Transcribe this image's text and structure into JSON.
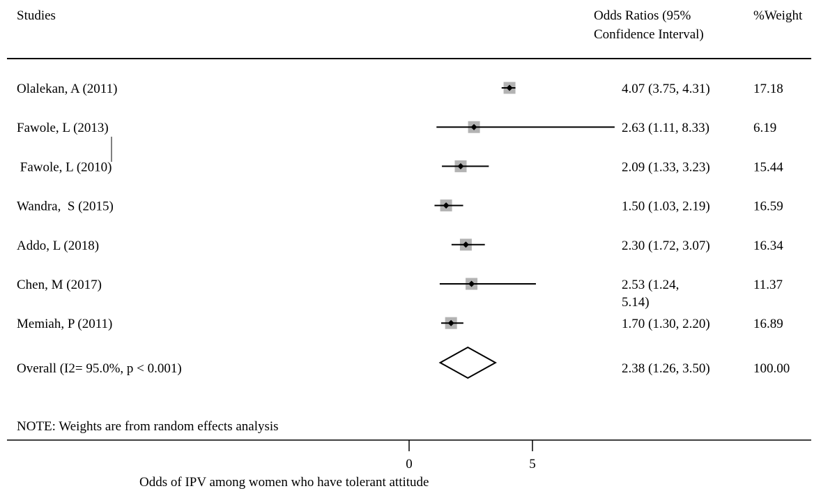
{
  "chart_data": {
    "type": "forest",
    "headers": {
      "studies": "Studies",
      "ci_line1": "Odds Ratios (95%",
      "ci_line2": "Confidence Interval)",
      "weight": "%Weight"
    },
    "studies": [
      {
        "label": "Olalekan, A (2011)",
        "or": 4.07,
        "lo": 3.75,
        "hi": 4.31,
        "ci_text": "4.07 (3.75, 4.31)",
        "weight": 17.18,
        "weight_text": "17.18"
      },
      {
        "label": "Fawole, L (2013)",
        "or": 2.63,
        "lo": 1.11,
        "hi": 8.33,
        "ci_text": "2.63 (1.11, 8.33)",
        "weight": 6.19,
        "weight_text": "6.19"
      },
      {
        "label": " Fawole, L (2010)",
        "or": 2.09,
        "lo": 1.33,
        "hi": 3.23,
        "ci_text": "2.09 (1.33, 3.23)",
        "weight": 15.44,
        "weight_text": "15.44"
      },
      {
        "label": "Wandra,  S (2015)",
        "or": 1.5,
        "lo": 1.03,
        "hi": 2.19,
        "ci_text": "1.50 (1.03, 2.19)",
        "weight": 16.59,
        "weight_text": "16.59"
      },
      {
        "label": "Addo, L (2018)",
        "or": 2.3,
        "lo": 1.72,
        "hi": 3.07,
        "ci_text": "2.30 (1.72, 3.07)",
        "weight": 16.34,
        "weight_text": "16.34"
      },
      {
        "label": "Chen, M (2017)",
        "or": 2.53,
        "lo": 1.24,
        "hi": 5.14,
        "ci_text": "2.53 (1.24,",
        "ci_text_wrap": "5.14)",
        "weight": 11.37,
        "weight_text": "11.37"
      },
      {
        "label": "Memiah, P (2011)",
        "or": 1.7,
        "lo": 1.3,
        "hi": 2.2,
        "ci_text": "1.70 (1.30, 2.20)",
        "weight": 16.89,
        "weight_text": "16.89"
      }
    ],
    "overall": {
      "label": "Overall  (I2= 95.0%, p < 0.001)",
      "or": 2.38,
      "lo": 1.26,
      "hi": 3.5,
      "ci_text": "2.38 (1.26, 3.50)",
      "weight_text": "100.00"
    },
    "note": "NOTE: Weights are from random effects analysis",
    "x_ticks": [
      {
        "value": 0,
        "label": "0"
      },
      {
        "value": 5,
        "label": "5"
      }
    ],
    "xlabel": "Odds of IPV among women who have tolerant attitude",
    "xlim": [
      0,
      8.33
    ],
    "colors": {
      "box": "#b3b3b3",
      "line": "#000000"
    }
  }
}
